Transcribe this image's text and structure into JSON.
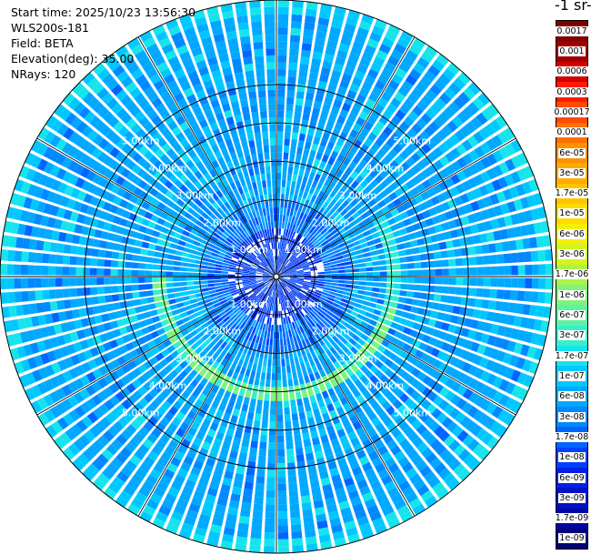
{
  "info": {
    "start_time": "Start time: 2025/10/23 13:56:30",
    "instrument": "WLS200s-181",
    "field": "Field: BETA",
    "elevation": "Elevation(deg): 35.00",
    "nrays": "NRays: 120"
  },
  "colorbar": {
    "title": "-1 sr-",
    "levels": [
      {
        "label": "0.0017",
        "color": "#800000"
      },
      {
        "label": "0.001",
        "color": "#a00000"
      },
      {
        "label": "0.0006",
        "color": "#d40000"
      },
      {
        "label": "0.0003",
        "color": "#ff1a00"
      },
      {
        "label": "0.00017",
        "color": "#ff4a00"
      },
      {
        "label": "0.0001",
        "color": "#ff7000"
      },
      {
        "label": "6e-05",
        "color": "#ff9000"
      },
      {
        "label": "3e-05",
        "color": "#ffab00"
      },
      {
        "label": "1.7e-05",
        "color": "#ffc400"
      },
      {
        "label": "1e-05",
        "color": "#ffdc00"
      },
      {
        "label": "6e-06",
        "color": "#f4f000"
      },
      {
        "label": "3e-06",
        "color": "#d4f41e"
      },
      {
        "label": "1.7e-06",
        "color": "#a8f44c"
      },
      {
        "label": "1e-06",
        "color": "#80f47a"
      },
      {
        "label": "6e-07",
        "color": "#5af4a4"
      },
      {
        "label": "3e-07",
        "color": "#36f0cc"
      },
      {
        "label": "1.7e-07",
        "color": "#16e4ec"
      },
      {
        "label": "1e-07",
        "color": "#00c8ff"
      },
      {
        "label": "6e-08",
        "color": "#00a8ff"
      },
      {
        "label": "3e-08",
        "color": "#0088ff"
      },
      {
        "label": "1.7e-08",
        "color": "#0064ff"
      },
      {
        "label": "1e-08",
        "color": "#0040ff"
      },
      {
        "label": "6e-09",
        "color": "#0020e8"
      },
      {
        "label": "3e-09",
        "color": "#0010c8"
      },
      {
        "label": "1.7e-09",
        "color": "#0008a0"
      },
      {
        "label": "1e-09",
        "color": "#000078"
      }
    ]
  },
  "chart_data": {
    "type": "heatmap",
    "projection": "polar-ppi",
    "range_rings_km": [
      1,
      2,
      3,
      4,
      5
    ],
    "range_ring_labels": [
      "1.00km",
      "2.00km",
      "3.00km",
      "4.00km",
      "5.00km"
    ],
    "max_range_km": 7.2,
    "nrays": 120,
    "field": "BETA",
    "colorscale": "log",
    "value_range": [
      1e-09,
      0.0017
    ],
    "dominant_value": 6e-08,
    "enhanced_ring": {
      "range_km": 3.1,
      "value": 1e-06,
      "sector_deg": [
        15,
        180
      ]
    }
  }
}
